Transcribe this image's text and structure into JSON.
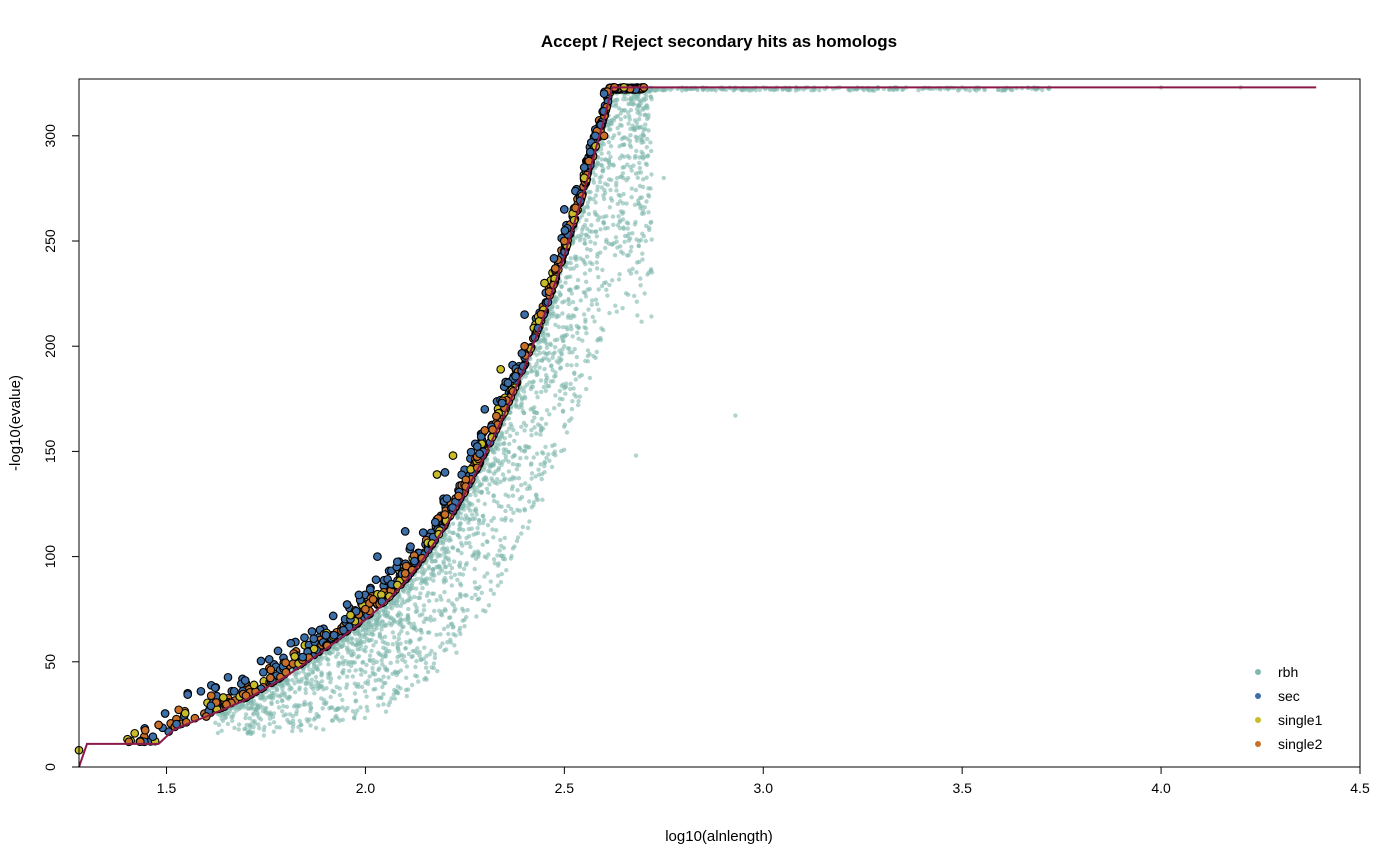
{
  "chart_data": {
    "type": "scatter",
    "title": "Accept / Reject secondary hits as homologs",
    "xlabel": "log10(alnlength)",
    "ylabel": "-log10(evalue)",
    "xlim": [
      1.28,
      4.5
    ],
    "ylim": [
      0,
      327
    ],
    "x_ticks": [
      1.5,
      2.0,
      2.5,
      3.0,
      3.5,
      4.0,
      4.5
    ],
    "y_ticks": [
      0,
      50,
      100,
      150,
      200,
      250,
      300
    ],
    "legend_position": "bottom-right",
    "grid": false,
    "threshold_line": {
      "color": "#8b1a4a",
      "points": [
        [
          1.28,
          0
        ],
        [
          1.3,
          11
        ],
        [
          1.48,
          11
        ],
        [
          1.52,
          18
        ],
        [
          1.6,
          24
        ],
        [
          1.7,
          32
        ],
        [
          1.8,
          43
        ],
        [
          1.9,
          56
        ],
        [
          2.0,
          70
        ],
        [
          2.05,
          78
        ],
        [
          2.1,
          88
        ],
        [
          2.15,
          100
        ],
        [
          2.2,
          114
        ],
        [
          2.25,
          130
        ],
        [
          2.3,
          148
        ],
        [
          2.35,
          168
        ],
        [
          2.4,
          190
        ],
        [
          2.45,
          215
        ],
        [
          2.5,
          243
        ],
        [
          2.55,
          274
        ],
        [
          2.6,
          308
        ],
        [
          2.62,
          323
        ],
        [
          4.39,
          323
        ]
      ]
    },
    "curve_model": {
      "points": [
        [
          1.28,
          0
        ],
        [
          1.3,
          11
        ],
        [
          1.48,
          11
        ],
        [
          1.52,
          18
        ],
        [
          1.6,
          24
        ],
        [
          1.7,
          32
        ],
        [
          1.8,
          43
        ],
        [
          1.9,
          56
        ],
        [
          2.0,
          70
        ],
        [
          2.05,
          78
        ],
        [
          2.1,
          88
        ],
        [
          2.15,
          100
        ],
        [
          2.2,
          114
        ],
        [
          2.25,
          130
        ],
        [
          2.3,
          148
        ],
        [
          2.35,
          168
        ],
        [
          2.4,
          190
        ],
        [
          2.45,
          215
        ],
        [
          2.5,
          243
        ],
        [
          2.55,
          274
        ],
        [
          2.6,
          308
        ],
        [
          2.62,
          323
        ],
        [
          4.39,
          323
        ]
      ]
    },
    "series": [
      {
        "name": "rbh",
        "color": "#7fb8ad",
        "marker": "small-dot",
        "sample_points": [
          [
            1.7,
            25
          ],
          [
            1.85,
            40
          ],
          [
            2.0,
            55
          ],
          [
            2.1,
            70
          ],
          [
            2.2,
            95
          ],
          [
            2.3,
            125
          ],
          [
            2.4,
            160
          ],
          [
            2.5,
            200
          ],
          [
            2.55,
            240
          ],
          [
            2.6,
            270
          ],
          [
            2.65,
            290
          ],
          [
            2.7,
            300
          ],
          [
            2.75,
            280
          ],
          [
            2.6,
            230
          ],
          [
            2.5,
            180
          ],
          [
            2.4,
            150
          ],
          [
            2.3,
            100
          ],
          [
            2.2,
            75
          ],
          [
            2.1,
            50
          ],
          [
            2.0,
            40
          ],
          [
            1.9,
            30
          ],
          [
            1.8,
            25
          ],
          [
            2.93,
            167
          ],
          [
            2.68,
            148
          ],
          [
            3.0,
            323
          ],
          [
            3.5,
            323
          ],
          [
            4.0,
            323
          ],
          [
            4.2,
            323
          ]
        ]
      },
      {
        "name": "sec",
        "color": "#3c6ea8",
        "marker": "outlined-circle",
        "sample_points": [
          [
            1.67,
            36
          ],
          [
            1.87,
            61
          ],
          [
            2.03,
            100
          ],
          [
            2.1,
            112
          ],
          [
            2.2,
            140
          ],
          [
            2.3,
            170
          ],
          [
            2.4,
            215
          ],
          [
            2.5,
            265
          ],
          [
            2.55,
            285
          ],
          [
            2.6,
            320
          ]
        ]
      },
      {
        "name": "single1",
        "color": "#c8bc28",
        "marker": "outlined-circle",
        "sample_points": [
          [
            1.28,
            8
          ],
          [
            1.42,
            16
          ],
          [
            1.72,
            39
          ],
          [
            2.18,
            139
          ],
          [
            2.22,
            148
          ],
          [
            2.34,
            189
          ],
          [
            2.45,
            230
          ],
          [
            2.55,
            280
          ],
          [
            2.65,
            323
          ]
        ]
      },
      {
        "name": "single2",
        "color": "#c8702a",
        "marker": "outlined-circle",
        "sample_points": [
          [
            1.48,
            20
          ],
          [
            1.6,
            24
          ],
          [
            1.8,
            45
          ],
          [
            2.0,
            75
          ],
          [
            2.1,
            92
          ],
          [
            2.2,
            120
          ],
          [
            2.3,
            160
          ],
          [
            2.4,
            200
          ],
          [
            2.5,
            250
          ],
          [
            2.6,
            300
          ],
          [
            2.7,
            323
          ]
        ]
      }
    ]
  }
}
